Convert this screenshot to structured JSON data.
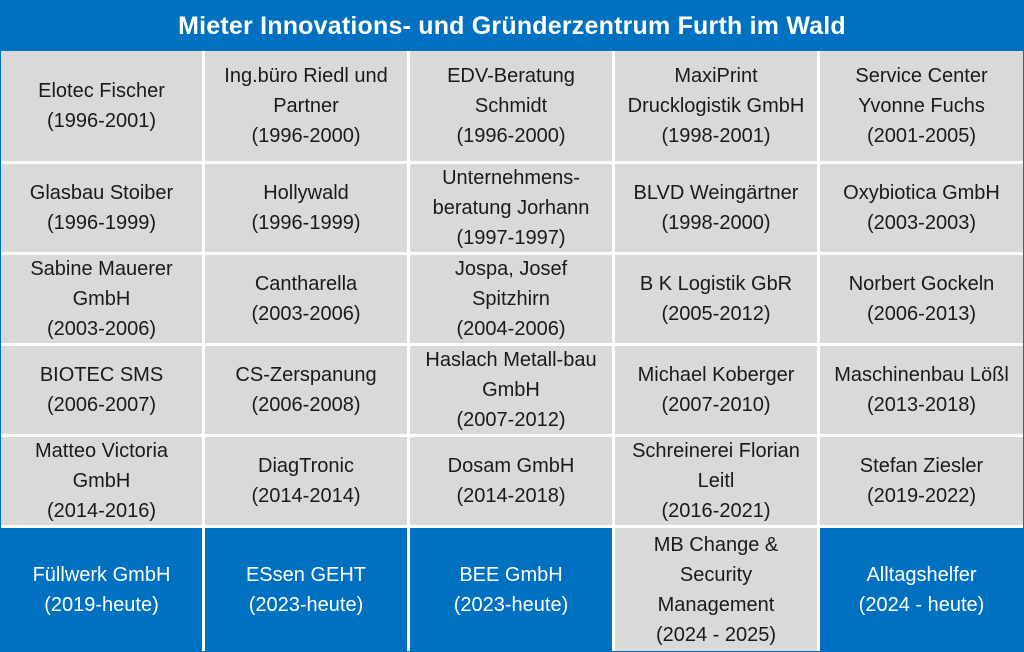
{
  "title": "Mieter Innovations- und Gründerzentrum Furth im Wald",
  "colors": {
    "accent": "#0070c0",
    "cell_bg": "#d9d9d9",
    "text": "#1a1a1a"
  },
  "rows": [
    [
      {
        "name": "Elotec Fischer",
        "years": "(1996-2001)"
      },
      {
        "name": "Ing.büro Riedl und Partner",
        "years": "(1996-2000)"
      },
      {
        "name": "EDV-Beratung Schmidt",
        "years": "(1996-2000)"
      },
      {
        "name": "MaxiPrint Drucklogistik GmbH",
        "years": "(1998-2001)"
      },
      {
        "name": "Service Center Yvonne Fuchs",
        "years": "(2001-2005)"
      }
    ],
    [
      {
        "name": "Glasbau Stoiber",
        "years": "(1996-1999)"
      },
      {
        "name": "Hollywald",
        "years": "(1996-1999)"
      },
      {
        "name": "Unternehmens-beratung Jorhann",
        "years": "(1997-1997)"
      },
      {
        "name": "BLVD Weingärtner",
        "years": "(1998-2000)"
      },
      {
        "name": "Oxybiotica GmbH",
        "years": "(2003-2003)"
      }
    ],
    [
      {
        "name": "Sabine Mauerer GmbH",
        "years": "(2003-2006)"
      },
      {
        "name": "Cantharella",
        "years": "(2003-2006)"
      },
      {
        "name": "Jospa, Josef Spitzhirn",
        "years": "(2004-2006)"
      },
      {
        "name": "B K Logistik GbR",
        "years": "(2005-2012)"
      },
      {
        "name": "Norbert Gockeln",
        "years": "(2006-2013)"
      }
    ],
    [
      {
        "name": "BIOTEC SMS",
        "years": "(2006-2007)"
      },
      {
        "name": "CS-Zerspanung",
        "years": "(2006-2008)"
      },
      {
        "name": "Haslach Metall-bau GmbH",
        "years": "(2007-2012)"
      },
      {
        "name": "Michael Koberger",
        "years": "(2007-2010)"
      },
      {
        "name": "Maschinenbau Lößl",
        "years": "(2013-2018)"
      }
    ],
    [
      {
        "name": "Matteo Victoria GmbH",
        "years": "(2014-2016)"
      },
      {
        "name": "DiagTronic",
        "years": "(2014-2014)"
      },
      {
        "name": "Dosam GmbH",
        "years": "(2014-2018)"
      },
      {
        "name": "Schreinerei Florian Leitl",
        "years": "(2016-2021)"
      },
      {
        "name": "Stefan Ziesler",
        "years": "(2019-2022)"
      }
    ],
    [
      {
        "name": "Füllwerk GmbH",
        "years": "(2019-heute)"
      },
      {
        "name": "ESsen GEHT",
        "years": "(2023-heute)"
      },
      {
        "name": "BEE GmbH",
        "years": "(2023-heute)"
      },
      {
        "name": "MB Change & Security Management",
        "years": "(2024 - 2025)"
      },
      {
        "name": "Alltagshelfer",
        "years": "(2024 - heute)"
      }
    ]
  ]
}
